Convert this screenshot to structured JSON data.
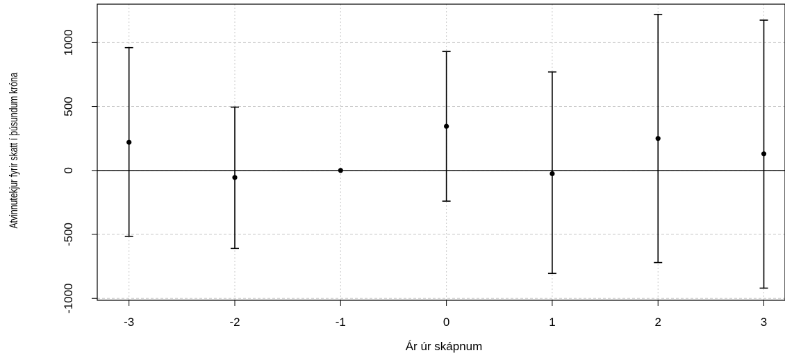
{
  "chart_data": {
    "type": "scatter",
    "title": "",
    "xlabel": "Ár úr skápnum",
    "ylabel": "Atvinnutekjur fyrir skatt í þúsundum króna",
    "x": [
      -3,
      -2,
      -1,
      0,
      1,
      2,
      3
    ],
    "y": [
      220,
      -55,
      0,
      345,
      -25,
      250,
      130
    ],
    "error_lower": [
      -515,
      -610,
      0,
      -240,
      -805,
      -720,
      -920
    ],
    "error_upper": [
      960,
      495,
      0,
      930,
      770,
      1220,
      1175
    ],
    "xticks": [
      "-3",
      "-2",
      "-1",
      "0",
      "1",
      "2",
      "3"
    ],
    "yticks": [
      "-1000",
      "-500",
      "0",
      "500",
      "1000"
    ],
    "xlim": [
      -3.3,
      3.2
    ],
    "ylim": [
      -1015,
      1300
    ],
    "reference_line_y": 0,
    "grid": true,
    "colors": {
      "points": "#000000",
      "grid": "#c8c8c8",
      "axis": "#000000"
    }
  }
}
